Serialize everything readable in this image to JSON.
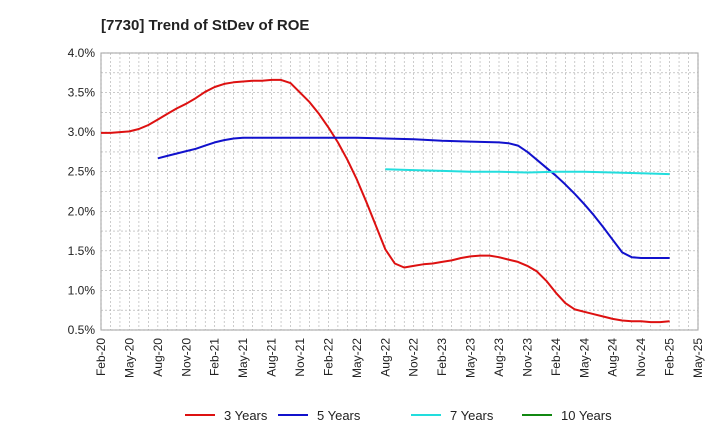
{
  "chart_data": {
    "type": "line",
    "title": "[7730]  Trend of StDev of ROE",
    "xlabel": "",
    "ylabel": "",
    "x_ticks": [
      "Feb-20",
      "May-20",
      "Aug-20",
      "Nov-20",
      "Feb-21",
      "May-21",
      "Aug-21",
      "Nov-21",
      "Feb-22",
      "May-22",
      "Aug-22",
      "Nov-22",
      "Feb-23",
      "May-23",
      "Aug-23",
      "Nov-23",
      "Feb-24",
      "May-24",
      "Aug-24",
      "Nov-24",
      "Feb-25",
      "May-25"
    ],
    "y_ticks": [
      "0.5%",
      "1.0%",
      "1.5%",
      "2.0%",
      "2.5%",
      "3.0%",
      "3.5%",
      "4.0%"
    ],
    "ylim": [
      0.5,
      4.0
    ],
    "grid": true,
    "legend_position": "bottom",
    "series": [
      {
        "name": "3 Years",
        "color": "#dd1111",
        "points": [
          [
            "Feb-20",
            2.99
          ],
          [
            "Mar-20",
            2.99
          ],
          [
            "Apr-20",
            3.0
          ],
          [
            "May-20",
            3.01
          ],
          [
            "Jun-20",
            3.04
          ],
          [
            "Jul-20",
            3.09
          ],
          [
            "Aug-20",
            3.16
          ],
          [
            "Sep-20",
            3.23
          ],
          [
            "Oct-20",
            3.3
          ],
          [
            "Nov-20",
            3.36
          ],
          [
            "Dec-20",
            3.43
          ],
          [
            "Jan-21",
            3.51
          ],
          [
            "Feb-21",
            3.57
          ],
          [
            "Mar-21",
            3.61
          ],
          [
            "Apr-21",
            3.63
          ],
          [
            "May-21",
            3.64
          ],
          [
            "Jun-21",
            3.65
          ],
          [
            "Jul-21",
            3.65
          ],
          [
            "Aug-21",
            3.66
          ],
          [
            "Sep-21",
            3.66
          ],
          [
            "Oct-21",
            3.62
          ],
          [
            "Nov-21",
            3.5
          ],
          [
            "Dec-21",
            3.38
          ],
          [
            "Jan-22",
            3.23
          ],
          [
            "Feb-22",
            3.06
          ],
          [
            "Mar-22",
            2.87
          ],
          [
            "Apr-22",
            2.65
          ],
          [
            "May-22",
            2.4
          ],
          [
            "Jun-22",
            2.12
          ],
          [
            "Jul-22",
            1.82
          ],
          [
            "Aug-22",
            1.52
          ],
          [
            "Sep-22",
            1.34
          ],
          [
            "Oct-22",
            1.29
          ],
          [
            "Nov-22",
            1.31
          ],
          [
            "Dec-22",
            1.33
          ],
          [
            "Jan-23",
            1.34
          ],
          [
            "Feb-23",
            1.36
          ],
          [
            "Mar-23",
            1.38
          ],
          [
            "Apr-23",
            1.41
          ],
          [
            "May-23",
            1.43
          ],
          [
            "Jun-23",
            1.44
          ],
          [
            "Jul-23",
            1.44
          ],
          [
            "Aug-23",
            1.42
          ],
          [
            "Sep-23",
            1.39
          ],
          [
            "Oct-23",
            1.36
          ],
          [
            "Nov-23",
            1.31
          ],
          [
            "Dec-23",
            1.24
          ],
          [
            "Jan-24",
            1.12
          ],
          [
            "Feb-24",
            0.97
          ],
          [
            "Mar-24",
            0.84
          ],
          [
            "Apr-24",
            0.76
          ],
          [
            "May-24",
            0.73
          ],
          [
            "Jun-24",
            0.7
          ],
          [
            "Jul-24",
            0.67
          ],
          [
            "Aug-24",
            0.64
          ],
          [
            "Sep-24",
            0.62
          ],
          [
            "Oct-24",
            0.61
          ],
          [
            "Nov-24",
            0.61
          ],
          [
            "Dec-24",
            0.6
          ],
          [
            "Jan-25",
            0.6
          ],
          [
            "Feb-25",
            0.61
          ]
        ]
      },
      {
        "name": "5 Years",
        "color": "#1111cc",
        "points": [
          [
            "Aug-20",
            2.67
          ],
          [
            "Sep-20",
            2.7
          ],
          [
            "Oct-20",
            2.73
          ],
          [
            "Nov-20",
            2.76
          ],
          [
            "Dec-20",
            2.79
          ],
          [
            "Jan-21",
            2.83
          ],
          [
            "Feb-21",
            2.87
          ],
          [
            "Mar-21",
            2.9
          ],
          [
            "Apr-21",
            2.92
          ],
          [
            "May-21",
            2.93
          ],
          [
            "Jun-21",
            2.93
          ],
          [
            "Jul-21",
            2.93
          ],
          [
            "Aug-21",
            2.93
          ],
          [
            "Sep-21",
            2.93
          ],
          [
            "Oct-21",
            2.93
          ],
          [
            "Nov-21",
            2.93
          ],
          [
            "Feb-22",
            2.93
          ],
          [
            "May-22",
            2.93
          ],
          [
            "Aug-22",
            2.92
          ],
          [
            "Nov-22",
            2.91
          ],
          [
            "Feb-23",
            2.89
          ],
          [
            "May-23",
            2.88
          ],
          [
            "Aug-23",
            2.87
          ],
          [
            "Sep-23",
            2.86
          ],
          [
            "Oct-23",
            2.83
          ],
          [
            "Nov-23",
            2.75
          ],
          [
            "Dec-23",
            2.65
          ],
          [
            "Jan-24",
            2.55
          ],
          [
            "Feb-24",
            2.45
          ],
          [
            "Mar-24",
            2.34
          ],
          [
            "Apr-24",
            2.22
          ],
          [
            "May-24",
            2.09
          ],
          [
            "Jun-24",
            1.95
          ],
          [
            "Jul-24",
            1.8
          ],
          [
            "Aug-24",
            1.64
          ],
          [
            "Sep-24",
            1.48
          ],
          [
            "Oct-24",
            1.42
          ],
          [
            "Nov-24",
            1.41
          ],
          [
            "Feb-25",
            1.41
          ]
        ]
      },
      {
        "name": "7 Years",
        "color": "#22dddd",
        "points": [
          [
            "Aug-22",
            2.53
          ],
          [
            "Nov-22",
            2.52
          ],
          [
            "Feb-23",
            2.51
          ],
          [
            "May-23",
            2.5
          ],
          [
            "Aug-23",
            2.5
          ],
          [
            "Nov-23",
            2.49
          ],
          [
            "Feb-24",
            2.5
          ],
          [
            "May-24",
            2.5
          ],
          [
            "Aug-24",
            2.49
          ],
          [
            "Nov-24",
            2.48
          ],
          [
            "Feb-25",
            2.47
          ]
        ]
      },
      {
        "name": "10 Years",
        "color": "#118811",
        "points": []
      }
    ]
  }
}
